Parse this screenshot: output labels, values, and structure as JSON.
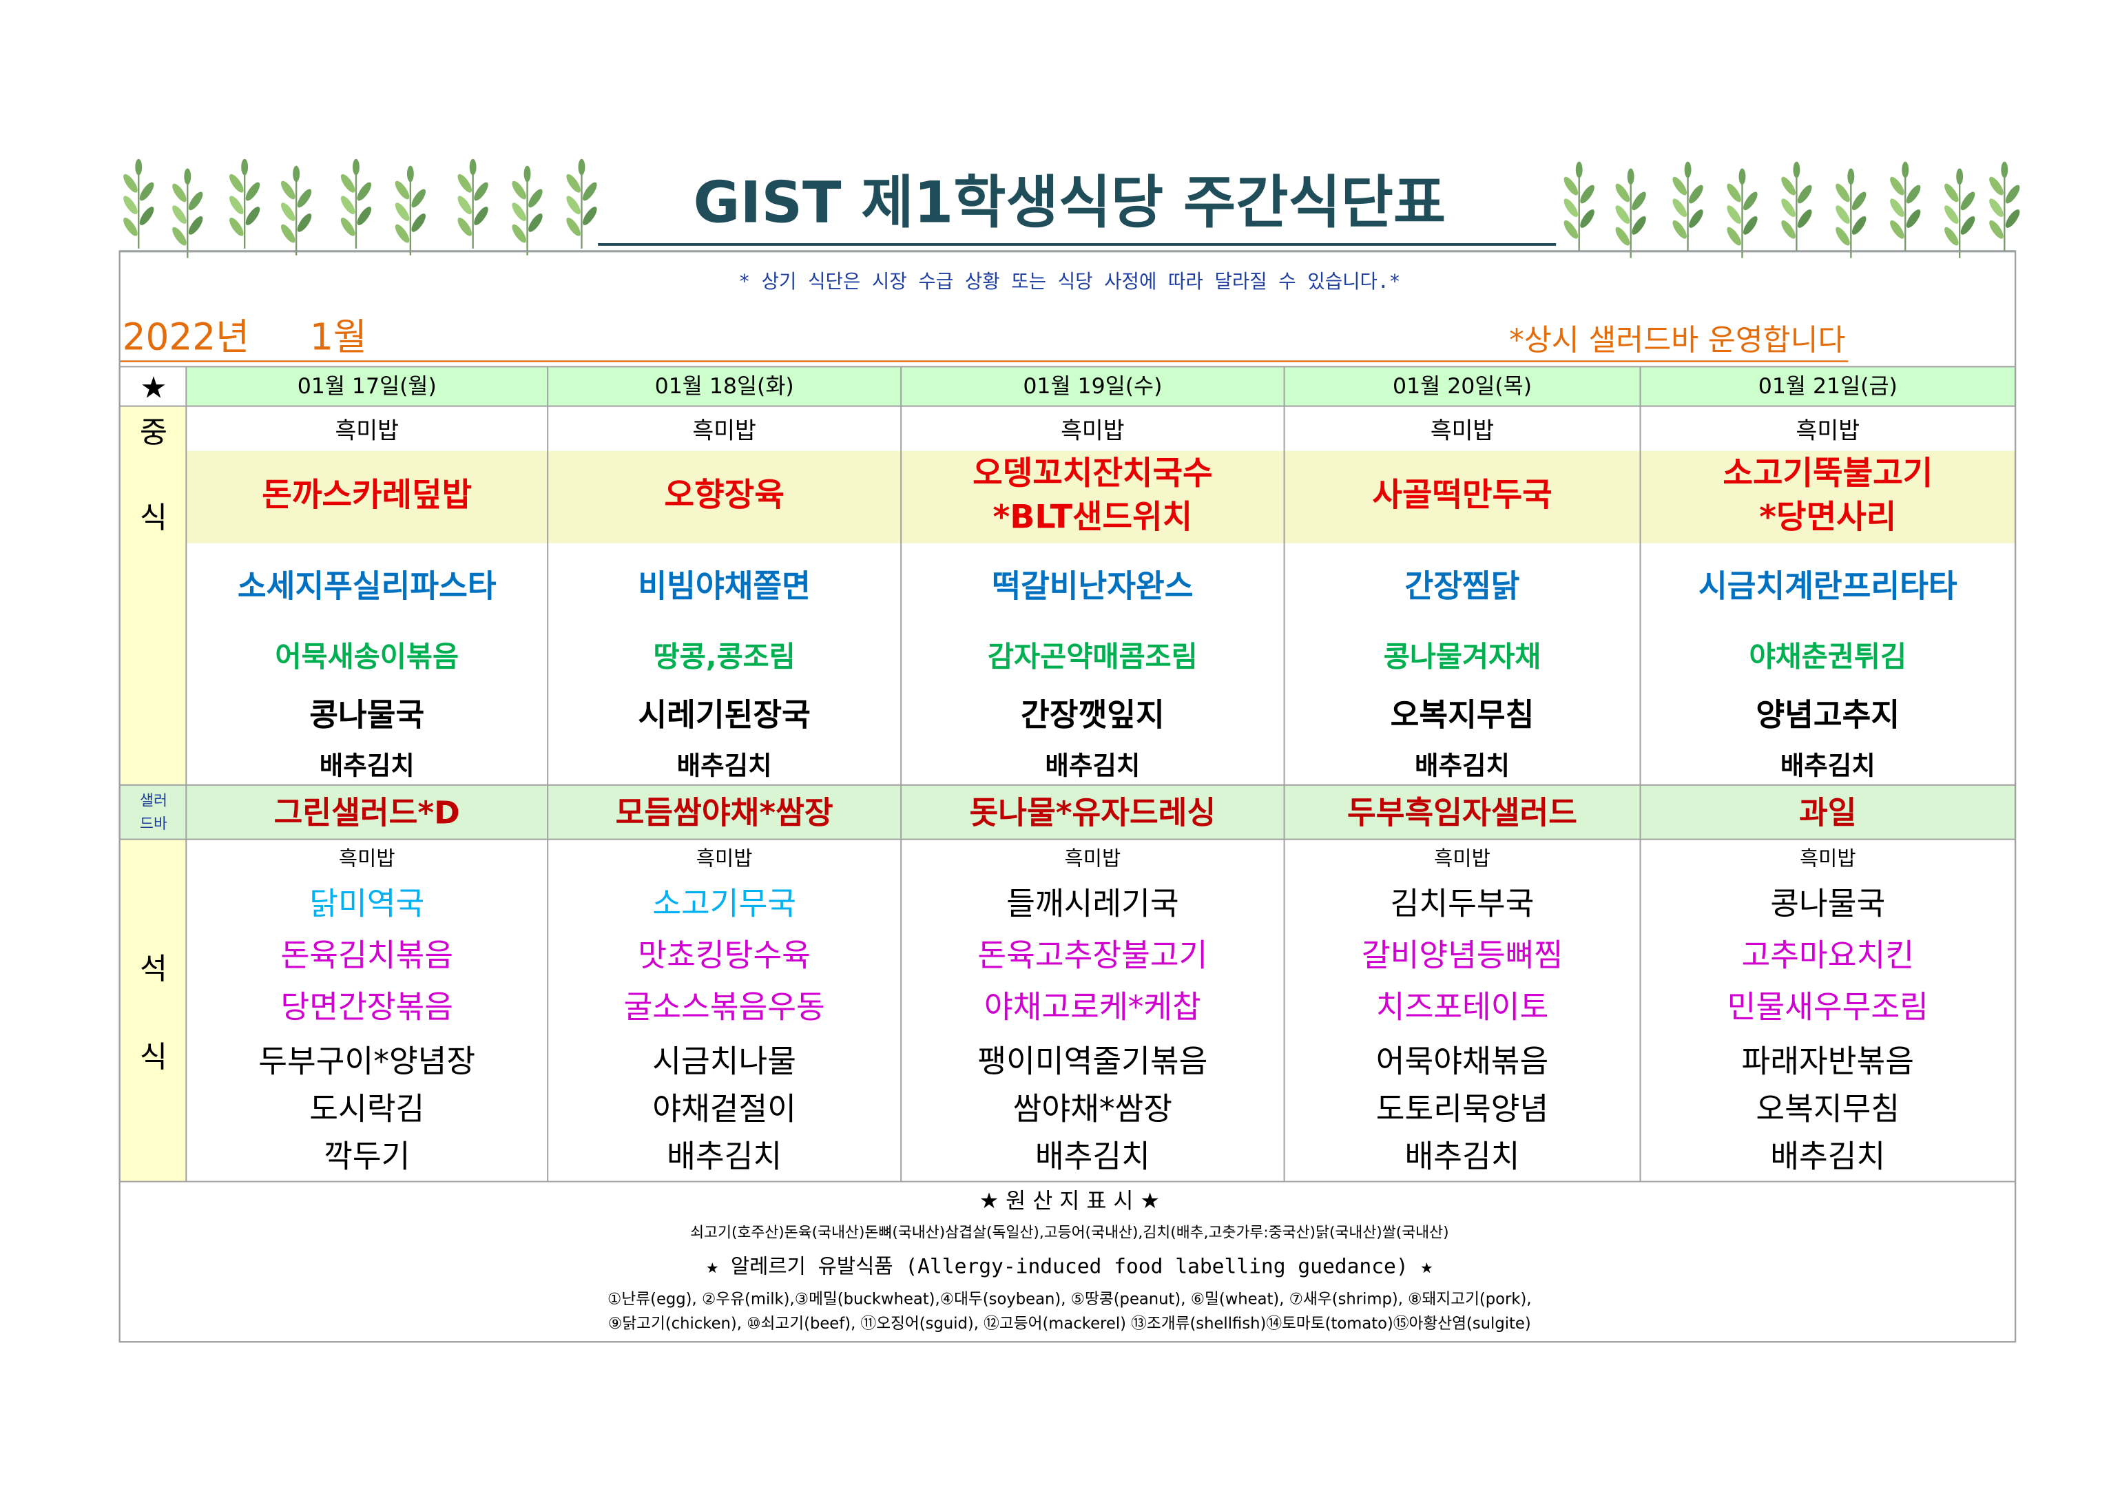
{
  "title": "GIST 제1학생식당 주간식단표",
  "notice": "* 상기 식단은 시장 수급 상황 또는 식당 사정에 따라 달라질 수 있습니다.*",
  "year": "2022년",
  "month": "1월",
  "salad_note": "*상시 샐러드바 운영합니다",
  "header": {
    "star": "★",
    "days": [
      "01월 17일(월)",
      "01월 18일(화)",
      "01월 19일(수)",
      "01월 20일(목)",
      "01월 21일(금)"
    ]
  },
  "lunch": {
    "label": [
      "중",
      "식"
    ],
    "rows": [
      {
        "items": [
          "흑미밥",
          "흑미밥",
          "흑미밥",
          "흑미밥",
          "흑미밥"
        ],
        "color": "#000000"
      },
      {
        "items": [
          [
            "돈까스카레덮밥"
          ],
          [
            "오향장육"
          ],
          [
            "오뎅꼬치잔치국수",
            "*BLT샌드위치"
          ],
          [
            "사골떡만두국"
          ],
          [
            "소고기뚝불고기",
            "*당면사리"
          ]
        ],
        "color": "#e60000"
      },
      {
        "items": [
          "소세지푸실리파스타",
          "비빔야채쫄면",
          "떡갈비난자완스",
          "간장찜닭",
          "시금치계란프리타타"
        ],
        "color": "#0070c0"
      },
      {
        "items": [
          "어묵새송이볶음",
          "땅콩,콩조림",
          "감자곤약매콤조림",
          "콩나물겨자채",
          "야채춘권튀김"
        ],
        "color": "#00b050"
      },
      {
        "items": [
          "콩나물국",
          "시레기된장국",
          "간장깻잎지",
          "오복지무침",
          "양념고추지"
        ],
        "color": "#000000"
      },
      {
        "items": [
          "배추김치",
          "배추김치",
          "배추김치",
          "배추김치",
          "배추김치"
        ],
        "color": "#000000"
      }
    ]
  },
  "salad": {
    "label": [
      "샐러",
      "드바"
    ],
    "items": [
      "그린샐러드*D",
      "모듬쌈야채*쌈장",
      "돗나물*유자드레싱",
      "두부흑임자샐러드",
      "과일"
    ],
    "color": "#c00000"
  },
  "dinner": {
    "label": [
      "석",
      "식"
    ],
    "rows": [
      {
        "items": [
          "흑미밥",
          "흑미밥",
          "흑미밥",
          "흑미밥",
          "흑미밥"
        ],
        "colors": [
          "#000000",
          "#000000",
          "#000000",
          "#000000",
          "#000000"
        ]
      },
      {
        "items": [
          "닭미역국",
          "소고기무국",
          "들깨시레기국",
          "김치두부국",
          "콩나물국"
        ],
        "colors": [
          "#00b0f0",
          "#00b0f0",
          "#000000",
          "#000000",
          "#000000"
        ]
      },
      {
        "items": [
          "돈육김치볶음",
          "맛쵸킹탕수육",
          "돈육고추장불고기",
          "갈비양념등뼈찜",
          "고추마요치킨"
        ],
        "colors": [
          "#d000d0",
          "#d000d0",
          "#d000d0",
          "#d000d0",
          "#d000d0"
        ]
      },
      {
        "items": [
          "당면간장볶음",
          "굴소스볶음우동",
          "야채고로케*케찹",
          "치즈포테이토",
          "민물새우무조림"
        ],
        "colors": [
          "#d000d0",
          "#d000d0",
          "#d000d0",
          "#d000d0",
          "#d000d0"
        ]
      },
      {
        "items": [
          "두부구이*양념장",
          "시금치나물",
          "팽이미역줄기볶음",
          "어묵야채볶음",
          "파래자반볶음"
        ],
        "colors": [
          "#000000",
          "#000000",
          "#000000",
          "#000000",
          "#000000"
        ]
      },
      {
        "items": [
          "도시락김",
          "야채겉절이",
          "쌈야채*쌈장",
          "도토리묵양념",
          "오복지무침"
        ],
        "colors": [
          "#000000",
          "#000000",
          "#000000",
          "#000000",
          "#000000"
        ]
      },
      {
        "items": [
          "깍두기",
          "배추김치",
          "배추김치",
          "배추김치",
          "배추김치"
        ],
        "colors": [
          "#000000",
          "#000000",
          "#000000",
          "#000000",
          "#000000"
        ]
      }
    ]
  },
  "footer": {
    "origin_title": "★ 원 산 지 표 시 ★",
    "origin": "쇠고기(호주산)돈육(국내산)돈뼈(국내산)삼겹살(독일산),고등어(국내산),김치(배추,고춧가루:중국산)닭(국내산)쌀(국내산)",
    "allergy_title": "★ 알레르기 유발식품 (Allergy-induced food labelling guedance) ★",
    "allergy": [
      "①난류(egg), ②우유(milk),③메밀(buckwheat),④대두(soybean), ⑤땅콩(peanut), ⑥밀(wheat), ⑦새우(shrimp), ⑧돼지고기(pork),",
      "⑨닭고기(chicken), ⑩쇠고기(beef), ⑪오징어(sguid), ⑫고등어(mackerel) ⑬조개류(shellfish)⑭토마토(tomato)⑮아황산염(sulgite)"
    ]
  }
}
